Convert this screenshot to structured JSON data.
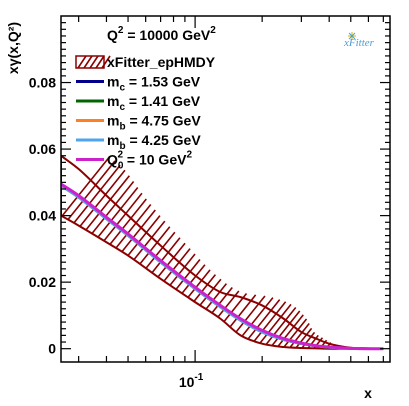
{
  "colors": {
    "band_stroke": "#8b0000",
    "band_hatch": "#8b0000",
    "mc_153": "#00008b",
    "mc_141": "#006400",
    "mb_475": "#ff7f27",
    "mb_425": "#4ea5ee",
    "q0_10": "#cc22cc",
    "logo": "#4a9fd8"
  },
  "header": {
    "main": "Q",
    "sup": "2",
    "rest": " = 10000 GeV",
    "sup2": "2"
  },
  "logo": {
    "text": "xFitter",
    "icon": "star-burst-icon"
  },
  "chart_data": {
    "type": "line",
    "xlabel": "x",
    "ylabel": "xγ(x,Q²)",
    "xscale": "log",
    "xlim": [
      0.025,
      0.75
    ],
    "ylim": [
      -0.004,
      0.1
    ],
    "x_ticks": [
      {
        "value": 0.1,
        "label": "10",
        "sup": "-1"
      }
    ],
    "y_ticks": [
      {
        "value": 0,
        "label": "0"
      },
      {
        "value": 0.02,
        "label": "0.02"
      },
      {
        "value": 0.04,
        "label": "0.04"
      },
      {
        "value": 0.06,
        "label": "0.06"
      },
      {
        "value": 0.08,
        "label": "0.08"
      }
    ],
    "legend_placement": "top-left",
    "legend": [
      {
        "key": "band",
        "style": "hatched",
        "text": "xFitter_epHMDY"
      },
      {
        "key": "mc_153",
        "style": "line",
        "main": "m",
        "sub": "c",
        "rest": " = 1.53 GeV"
      },
      {
        "key": "mc_141",
        "style": "line",
        "main": "m",
        "sub": "c",
        "rest": " = 1.41 GeV"
      },
      {
        "key": "mb_475",
        "style": "line",
        "main": "m",
        "sub": "b",
        "rest": " = 4.75 GeV"
      },
      {
        "key": "mb_425",
        "style": "line",
        "main": "m",
        "sub": "b",
        "rest": " = 4.25 GeV"
      },
      {
        "key": "q0_10",
        "style": "line",
        "main": "Q",
        "sub": "0",
        "sup": "2",
        "rest": " = 10 GeV",
        "sup2": "2"
      }
    ],
    "band": {
      "x": [
        0.025,
        0.03,
        0.04,
        0.05,
        0.07,
        0.1,
        0.13,
        0.16,
        0.2,
        0.25,
        0.3,
        0.35,
        0.4,
        0.5,
        0.6,
        0.7
      ],
      "upper": [
        0.058,
        0.054,
        0.046,
        0.04,
        0.031,
        0.022,
        0.017,
        0.0155,
        0.013,
        0.009,
        0.005,
        0.003,
        0.0015,
        0.0003,
        0.0001,
        0.0
      ],
      "lower": [
        0.04,
        0.037,
        0.032,
        0.028,
        0.021,
        0.014,
        0.009,
        0.004,
        0.0015,
        0.0005,
        0.0002,
        0.0001,
        0.0,
        0.0,
        0.0,
        0.0
      ]
    },
    "series": [
      {
        "key": "mc_153",
        "x": [
          0.025,
          0.03,
          0.04,
          0.05,
          0.07,
          0.1,
          0.13,
          0.16,
          0.2,
          0.25,
          0.3,
          0.35,
          0.4,
          0.5,
          0.6,
          0.7
        ],
        "values": [
          0.049,
          0.0455,
          0.039,
          0.034,
          0.026,
          0.018,
          0.0125,
          0.0085,
          0.005,
          0.0027,
          0.0015,
          0.0008,
          0.0004,
          0.0001,
          0.0,
          0.0
        ]
      },
      {
        "key": "mc_141",
        "x": [
          0.025,
          0.03,
          0.04,
          0.05,
          0.07,
          0.1,
          0.13,
          0.16,
          0.2,
          0.25,
          0.3,
          0.35,
          0.4,
          0.5,
          0.6,
          0.7
        ],
        "values": [
          0.049,
          0.0455,
          0.039,
          0.034,
          0.026,
          0.018,
          0.0125,
          0.0085,
          0.005,
          0.0027,
          0.0015,
          0.0008,
          0.0004,
          0.0001,
          0.0,
          0.0
        ]
      },
      {
        "key": "mb_475",
        "x": [
          0.025,
          0.03,
          0.04,
          0.05,
          0.07,
          0.1,
          0.13,
          0.16,
          0.2,
          0.25,
          0.3,
          0.35,
          0.4,
          0.5,
          0.6,
          0.7
        ],
        "values": [
          0.049,
          0.0455,
          0.039,
          0.034,
          0.026,
          0.018,
          0.0125,
          0.0085,
          0.005,
          0.0027,
          0.0015,
          0.0008,
          0.0004,
          0.0001,
          0.0,
          0.0
        ]
      },
      {
        "key": "mb_425",
        "x": [
          0.025,
          0.03,
          0.04,
          0.05,
          0.07,
          0.1,
          0.13,
          0.16,
          0.2,
          0.25,
          0.3,
          0.35,
          0.4,
          0.5,
          0.6,
          0.7
        ],
        "values": [
          0.049,
          0.0455,
          0.039,
          0.034,
          0.026,
          0.018,
          0.0125,
          0.0085,
          0.005,
          0.0027,
          0.0015,
          0.0008,
          0.0004,
          0.0001,
          0.0,
          0.0
        ]
      },
      {
        "key": "q0_10",
        "x": [
          0.025,
          0.03,
          0.04,
          0.05,
          0.07,
          0.1,
          0.13,
          0.16,
          0.2,
          0.25,
          0.3,
          0.35,
          0.4,
          0.5,
          0.6,
          0.7
        ],
        "values": [
          0.0495,
          0.046,
          0.0395,
          0.0345,
          0.0265,
          0.0185,
          0.013,
          0.009,
          0.0055,
          0.003,
          0.0017,
          0.0009,
          0.0005,
          0.0001,
          0.0,
          0.0
        ]
      }
    ]
  }
}
